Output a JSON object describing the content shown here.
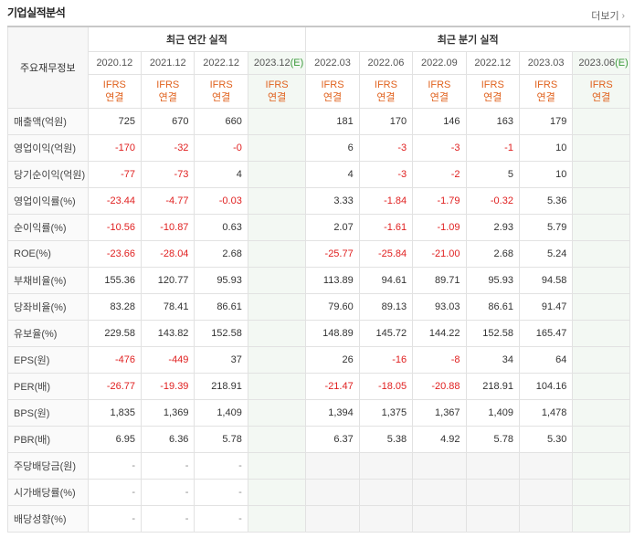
{
  "header": {
    "title": "기업실적분석",
    "more_label": "더보기",
    "more_icon": "chevron-right-icon"
  },
  "table": {
    "label_header": "주요재무정보",
    "annual_group": "최근 연간 실적",
    "quarter_group": "최근 분기 실적",
    "annual_periods": [
      "2020.12",
      "2021.12",
      "2022.12",
      "2023.12(E)"
    ],
    "quarter_periods": [
      "2022.03",
      "2022.06",
      "2022.09",
      "2022.12",
      "2023.03",
      "2023.06(E)"
    ],
    "standard_line1": "IFRS",
    "standard_line2": "연결",
    "rows": [
      {
        "label": "매출액(억원)",
        "annual": [
          "725",
          "670",
          "660",
          ""
        ],
        "quarter": [
          "181",
          "170",
          "146",
          "163",
          "179",
          ""
        ]
      },
      {
        "label": "영업이익(억원)",
        "annual": [
          "-170",
          "-32",
          "-0",
          ""
        ],
        "quarter": [
          "6",
          "-3",
          "-3",
          "-1",
          "10",
          ""
        ]
      },
      {
        "label": "당기순이익(억원)",
        "annual": [
          "-77",
          "-73",
          "4",
          ""
        ],
        "quarter": [
          "4",
          "-3",
          "-2",
          "5",
          "10",
          ""
        ]
      },
      {
        "label": "영업이익률(%)",
        "annual": [
          "-23.44",
          "-4.77",
          "-0.03",
          ""
        ],
        "quarter": [
          "3.33",
          "-1.84",
          "-1.79",
          "-0.32",
          "5.36",
          ""
        ]
      },
      {
        "label": "순이익률(%)",
        "annual": [
          "-10.56",
          "-10.87",
          "0.63",
          ""
        ],
        "quarter": [
          "2.07",
          "-1.61",
          "-1.09",
          "2.93",
          "5.79",
          ""
        ]
      },
      {
        "label": "ROE(%)",
        "annual": [
          "-23.66",
          "-28.04",
          "2.68",
          ""
        ],
        "quarter": [
          "-25.77",
          "-25.84",
          "-21.00",
          "2.68",
          "5.24",
          ""
        ]
      },
      {
        "label": "부채비율(%)",
        "annual": [
          "155.36",
          "120.77",
          "95.93",
          ""
        ],
        "quarter": [
          "113.89",
          "94.61",
          "89.71",
          "95.93",
          "94.58",
          ""
        ]
      },
      {
        "label": "당좌비율(%)",
        "annual": [
          "83.28",
          "78.41",
          "86.61",
          ""
        ],
        "quarter": [
          "79.60",
          "89.13",
          "93.03",
          "86.61",
          "91.47",
          ""
        ]
      },
      {
        "label": "유보율(%)",
        "annual": [
          "229.58",
          "143.82",
          "152.58",
          ""
        ],
        "quarter": [
          "148.89",
          "145.72",
          "144.22",
          "152.58",
          "165.47",
          ""
        ]
      },
      {
        "label": "EPS(원)",
        "annual": [
          "-476",
          "-449",
          "37",
          ""
        ],
        "quarter": [
          "26",
          "-16",
          "-8",
          "34",
          "64",
          ""
        ]
      },
      {
        "label": "PER(배)",
        "annual": [
          "-26.77",
          "-19.39",
          "218.91",
          ""
        ],
        "quarter": [
          "-21.47",
          "-18.05",
          "-20.88",
          "218.91",
          "104.16",
          ""
        ]
      },
      {
        "label": "BPS(원)",
        "annual": [
          "1,835",
          "1,369",
          "1,409",
          ""
        ],
        "quarter": [
          "1,394",
          "1,375",
          "1,367",
          "1,409",
          "1,478",
          ""
        ]
      },
      {
        "label": "PBR(배)",
        "annual": [
          "6.95",
          "6.36",
          "5.78",
          ""
        ],
        "quarter": [
          "6.37",
          "5.38",
          "4.92",
          "5.78",
          "5.30",
          ""
        ]
      },
      {
        "label": "주당배당금(원)",
        "annual": [
          "-",
          "-",
          "-",
          ""
        ],
        "quarter": [
          "",
          "",
          "",
          "",
          "",
          ""
        ]
      },
      {
        "label": "시가배당률(%)",
        "annual": [
          "-",
          "-",
          "-",
          ""
        ],
        "quarter": [
          "",
          "",
          "",
          "",
          "",
          ""
        ]
      },
      {
        "label": "배당성향(%)",
        "annual": [
          "-",
          "-",
          "-",
          ""
        ],
        "quarter": [
          "",
          "",
          "",
          "",
          "",
          ""
        ]
      }
    ]
  }
}
